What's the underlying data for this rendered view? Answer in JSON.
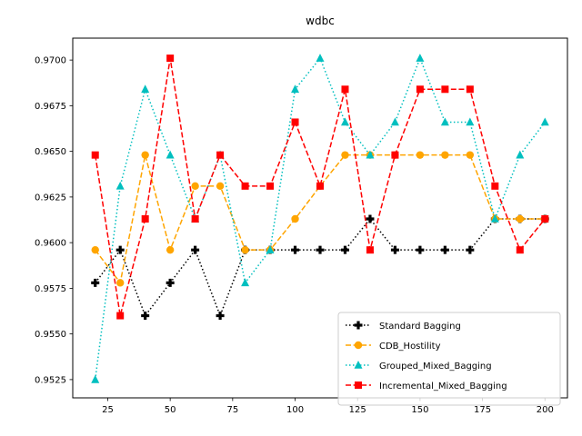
{
  "chart_data": {
    "type": "line",
    "title": "wdbc",
    "xlabel": "",
    "ylabel": "",
    "xlim": [
      11,
      209
    ],
    "ylim": [
      0.9515,
      0.9712
    ],
    "xticks": [
      25,
      50,
      75,
      100,
      125,
      150,
      175,
      200
    ],
    "xtick_labels": [
      "25",
      "50",
      "75",
      "100",
      "125",
      "150",
      "175",
      "200"
    ],
    "yticks": [
      0.9525,
      0.955,
      0.9575,
      0.96,
      0.9625,
      0.965,
      0.9675,
      0.97
    ],
    "ytick_labels": [
      "0.9525",
      "0.9550",
      "0.9575",
      "0.9600",
      "0.9625",
      "0.9650",
      "0.9675",
      "0.9700"
    ],
    "grid": false,
    "legend_position": "lower-right",
    "x": [
      20,
      30,
      40,
      50,
      60,
      70,
      80,
      90,
      100,
      110,
      120,
      130,
      140,
      150,
      160,
      170,
      180,
      190,
      200
    ],
    "series": [
      {
        "name": "Standard Bagging",
        "color": "#000000",
        "linestyle": "dotted",
        "marker": "plus",
        "values": [
          0.9578,
          0.9596,
          0.956,
          0.9578,
          0.9596,
          0.956,
          0.9596,
          0.9596,
          0.9596,
          0.9596,
          0.9596,
          0.9613,
          0.9596,
          0.9596,
          0.9596,
          0.9596,
          0.9613,
          0.9613,
          0.9613
        ]
      },
      {
        "name": "CDB_Hostility",
        "color": "#ffa500",
        "linestyle": "dashed",
        "marker": "circle",
        "values": [
          0.9596,
          0.9578,
          0.9648,
          0.9596,
          0.9631,
          0.9631,
          0.9596,
          0.9596,
          0.9613,
          0.9631,
          0.9648,
          0.9648,
          0.9648,
          0.9648,
          0.9648,
          0.9648,
          0.9613,
          0.9613,
          0.9613
        ]
      },
      {
        "name": "Grouped_Mixed_Bagging",
        "color": "#00bfbf",
        "linestyle": "dotted",
        "marker": "triangle",
        "values": [
          0.9525,
          0.9631,
          0.9684,
          0.9648,
          0.9613,
          0.9648,
          0.9578,
          0.9596,
          0.9684,
          0.9701,
          0.9666,
          0.9648,
          0.9666,
          0.9701,
          0.9666,
          0.9666,
          0.9613,
          0.9648,
          0.9666
        ]
      },
      {
        "name": "Incremental_Mixed_Bagging",
        "color": "#ff0000",
        "linestyle": "dashed",
        "marker": "square",
        "values": [
          0.9648,
          0.956,
          0.9613,
          0.9701,
          0.9613,
          0.9648,
          0.9631,
          0.9631,
          0.9666,
          0.9631,
          0.9684,
          0.9596,
          0.9648,
          0.9684,
          0.9684,
          0.9684,
          0.9631,
          0.9596,
          0.9613
        ]
      }
    ]
  }
}
